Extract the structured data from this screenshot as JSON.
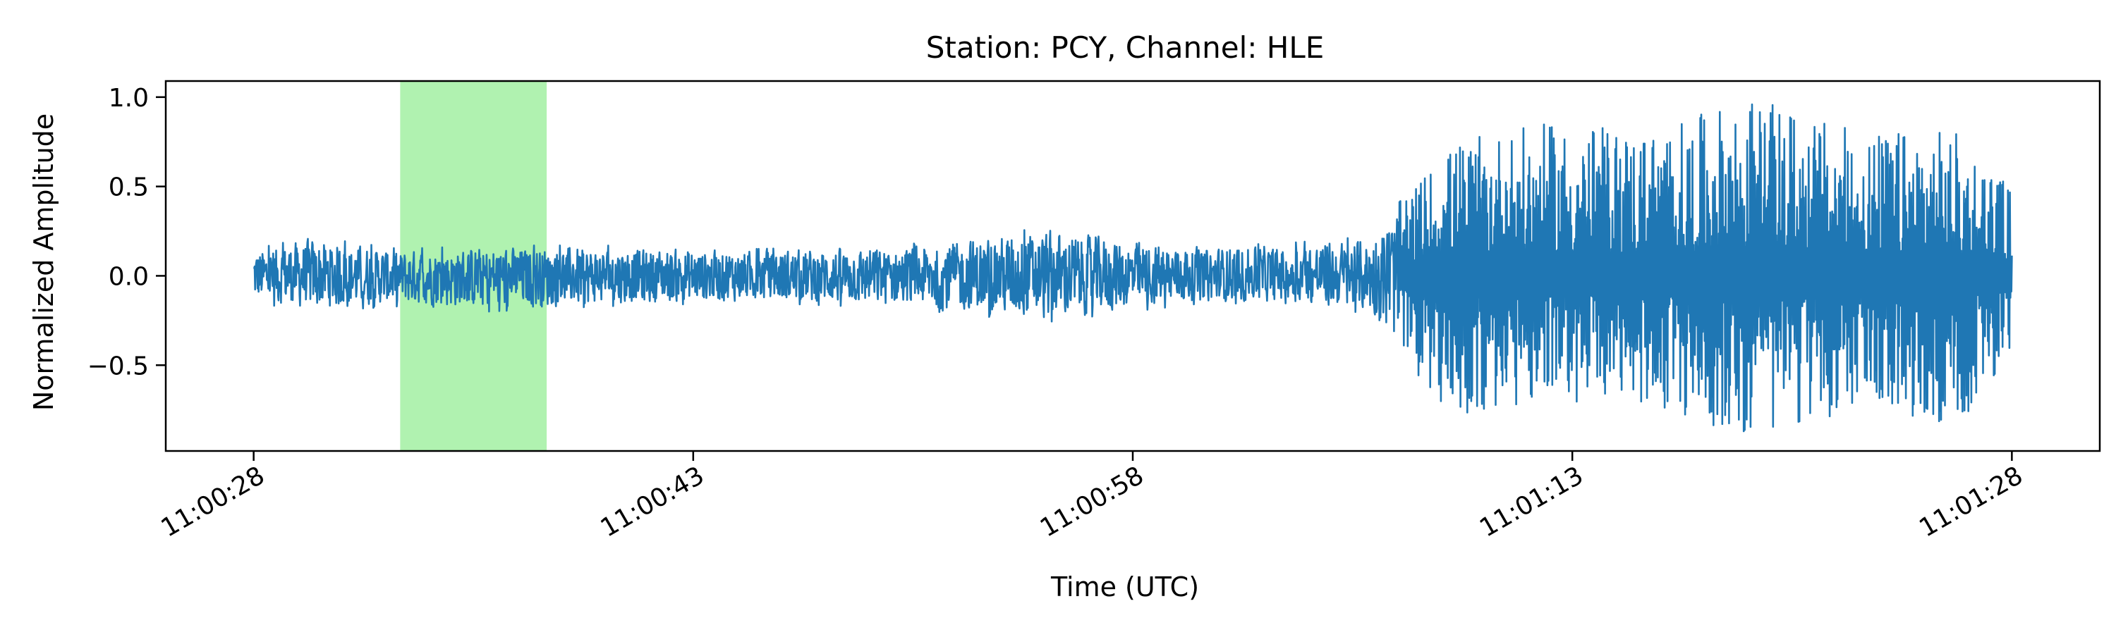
{
  "chart_data": {
    "type": "line",
    "title": "Station: PCY, Channel: HLE",
    "xlabel": "Time (UTC)",
    "ylabel": "Normalized Amplitude",
    "x_unit": "time of day (UTC)",
    "xlim": [
      "11:00:25",
      "11:01:31"
    ],
    "ylim": [
      -0.98,
      1.09
    ],
    "x_ticks": [
      "11:00:28",
      "11:00:43",
      "11:00:58",
      "11:01:13",
      "11:01:28"
    ],
    "y_ticks": [
      1.0,
      0.5,
      0.0,
      -0.5
    ],
    "y_tick_labels": [
      "1.0",
      "0.5",
      "0.0",
      "−0.5"
    ],
    "grid": false,
    "legend": "none",
    "highlight_span": {
      "start": "11:00:33",
      "end": "11:00:38",
      "color": "#b0f2b0"
    },
    "series": [
      {
        "color": "#1f77b4",
        "x_start": "11:00:28",
        "x_end": "11:01:28",
        "envelope": [
          {
            "time": "11:00:28",
            "max": 0.15,
            "min": -0.15
          },
          {
            "time": "11:00:30",
            "max": 0.22,
            "min": -0.2
          },
          {
            "time": "11:00:33",
            "max": 0.15,
            "min": -0.17
          },
          {
            "time": "11:00:36",
            "max": 0.17,
            "min": -0.2
          },
          {
            "time": "11:00:40",
            "max": 0.17,
            "min": -0.17
          },
          {
            "time": "11:00:45",
            "max": 0.15,
            "min": -0.15
          },
          {
            "time": "11:00:50",
            "max": 0.17,
            "min": -0.18
          },
          {
            "time": "11:00:55",
            "max": 0.27,
            "min": -0.26
          },
          {
            "time": "11:01:00",
            "max": 0.17,
            "min": -0.16
          },
          {
            "time": "11:01:03",
            "max": 0.18,
            "min": -0.15
          },
          {
            "time": "11:01:06",
            "max": 0.22,
            "min": -0.21
          },
          {
            "time": "11:01:09",
            "max": 0.75,
            "min": -0.82
          },
          {
            "time": "11:01:12",
            "max": 0.85,
            "min": -0.7
          },
          {
            "time": "11:01:16",
            "max": 0.82,
            "min": -0.75
          },
          {
            "time": "11:01:19",
            "max": 1.0,
            "min": -0.9
          },
          {
            "time": "11:01:23",
            "max": 0.8,
            "min": -0.75
          },
          {
            "time": "11:01:26",
            "max": 0.82,
            "min": -0.86
          },
          {
            "time": "11:01:28",
            "max": 0.5,
            "min": -0.5
          }
        ]
      }
    ]
  }
}
